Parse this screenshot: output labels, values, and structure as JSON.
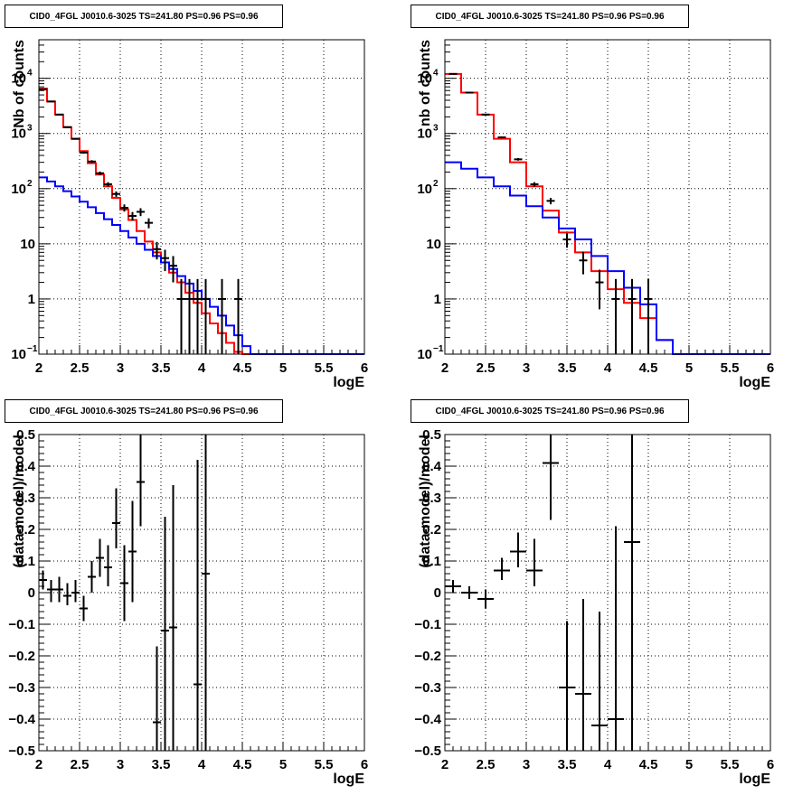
{
  "chart_data": [
    {
      "type": "line",
      "title": "CID0_4FGL J0010.6-3025 TS=241.80 PS=0.96 PS=0.96",
      "xlabel": "logE",
      "ylabel": "Nb of counts",
      "xlim": [
        2,
        6
      ],
      "ylim": [
        0.1,
        50000
      ],
      "yscale": "log",
      "grid": true,
      "xticks": [
        "2",
        "2.5",
        "3",
        "3.5",
        "4",
        "4.5",
        "5",
        "5.5",
        "6"
      ],
      "yticks": [
        {
          "value": 0.1,
          "label": "10",
          "exp": "−1"
        },
        {
          "value": 1,
          "label": "1",
          "exp": ""
        },
        {
          "value": 10,
          "label": "10",
          "exp": ""
        },
        {
          "value": 100,
          "label": "10",
          "exp": "2"
        },
        {
          "value": 1000,
          "label": "10",
          "exp": "3"
        },
        {
          "value": 10000,
          "label": "10",
          "exp": "4"
        }
      ],
      "bin_edges": [
        2.0,
        2.1,
        2.2,
        2.3,
        2.4,
        2.5,
        2.6,
        2.7,
        2.8,
        2.9,
        3.0,
        3.1,
        3.2,
        3.3,
        3.4,
        3.5,
        3.6,
        3.7,
        3.8,
        3.9,
        4.0,
        4.1,
        4.2,
        4.3,
        4.4,
        4.5,
        4.6,
        4.7,
        4.8,
        4.9,
        5.0,
        5.1,
        5.2,
        5.3,
        5.4,
        5.5,
        5.6,
        5.7,
        5.8,
        5.9,
        6.0
      ],
      "series": [
        {
          "color": "#ff0000",
          "style": "step",
          "values": [
            6500,
            3800,
            2200,
            1300,
            800,
            480,
            290,
            180,
            110,
            68,
            42,
            27,
            17,
            11,
            7,
            4.6,
            3.0,
            2.0,
            1.3,
            0.85,
            0.55,
            0.36,
            0.24,
            0.16,
            0.11,
            0.1,
            0.1,
            0.1,
            0.1,
            0.1,
            0.1,
            0.1,
            0.1,
            0.1,
            0.1,
            0.1,
            0.1,
            0.1,
            0.1,
            0.1
          ]
        },
        {
          "color": "#0000ff",
          "style": "step",
          "values": [
            160,
            135,
            110,
            90,
            72,
            58,
            46,
            36,
            28,
            22,
            17,
            13,
            10,
            7.8,
            6,
            4.6,
            3.5,
            2.6,
            1.9,
            1.4,
            1.0,
            0.72,
            0.5,
            0.33,
            0.22,
            0.14,
            0.1,
            0.1,
            0.1,
            0.1,
            0.1,
            0.1,
            0.1,
            0.1,
            0.1,
            0.1,
            0.1,
            0.1,
            0.1,
            0.1
          ]
        }
      ],
      "points": {
        "color": "#000000",
        "x": [
          2.05,
          2.15,
          2.25,
          2.35,
          2.45,
          2.55,
          2.65,
          2.75,
          2.85,
          2.95,
          3.05,
          3.15,
          3.25,
          3.35,
          3.45,
          3.55,
          3.65,
          3.75,
          3.85,
          3.95,
          4.05,
          4.25,
          4.45
        ],
        "y": [
          6300,
          3800,
          2200,
          1300,
          800,
          450,
          310,
          190,
          120,
          80,
          45,
          32,
          38,
          24,
          8,
          5.5,
          4,
          1,
          1,
          1,
          1,
          1,
          1
        ],
        "ylo": [
          6220,
          3740,
          2150,
          1265,
          772,
          429,
          293,
          176,
          109,
          71,
          38.3,
          26.3,
          31.8,
          19.1,
          5.2,
          3.2,
          2.0,
          0.1,
          0.1,
          0.1,
          0.1,
          0.1,
          0.1
        ],
        "yhi": [
          6380,
          3860,
          2250,
          1336,
          828,
          471,
          328,
          204,
          131,
          89,
          51.7,
          37.7,
          44.2,
          28.9,
          10.8,
          7.8,
          6.0,
          2.3,
          2.3,
          2.3,
          2.3,
          2.3,
          2.3
        ]
      }
    },
    {
      "type": "line",
      "title": "CID0_4FGL J0010.6-3025 TS=241.80 PS=0.96 PS=0.96",
      "xlabel": "logE",
      "ylabel": "nb of counts",
      "xlim": [
        2,
        6
      ],
      "ylim": [
        0.1,
        50000
      ],
      "yscale": "log",
      "grid": true,
      "xticks": [
        "2",
        "2.5",
        "3",
        "3.5",
        "4",
        "4.5",
        "5",
        "5.5",
        "6"
      ],
      "yticks": [
        {
          "value": 0.1,
          "label": "10",
          "exp": "−1"
        },
        {
          "value": 1,
          "label": "1",
          "exp": ""
        },
        {
          "value": 10,
          "label": "10",
          "exp": ""
        },
        {
          "value": 100,
          "label": "10",
          "exp": "2"
        },
        {
          "value": 1000,
          "label": "10",
          "exp": "3"
        },
        {
          "value": 10000,
          "label": "10",
          "exp": "4"
        }
      ],
      "bin_edges": [
        2.0,
        2.2,
        2.4,
        2.6,
        2.8,
        3.0,
        3.2,
        3.4,
        3.6,
        3.8,
        4.0,
        4.2,
        4.4,
        4.6,
        4.8,
        5.0,
        5.2,
        5.4,
        5.6,
        5.8,
        6.0
      ],
      "series": [
        {
          "color": "#ff0000",
          "style": "step",
          "values": [
            12000,
            5500,
            2200,
            800,
            300,
            110,
            40,
            16,
            7,
            3.2,
            1.5,
            0.85,
            0.45,
            0.18,
            0.1,
            0.1,
            0.1,
            0.1,
            0.1,
            0.1
          ]
        },
        {
          "color": "#0000ff",
          "style": "step",
          "values": [
            300,
            230,
            160,
            110,
            75,
            48,
            30,
            19,
            12,
            6,
            3.2,
            1.6,
            0.8,
            0.18,
            0.1,
            0.1,
            0.1,
            0.1,
            0.1,
            0.1
          ]
        }
      ],
      "points": {
        "color": "#000000",
        "x": [
          2.1,
          2.3,
          2.5,
          2.7,
          2.9,
          3.1,
          3.3,
          3.5,
          3.7,
          3.9,
          4.1,
          4.3,
          4.5
        ],
        "y": [
          12000,
          5500,
          2200,
          850,
          340,
          120,
          60,
          12,
          5,
          2,
          1,
          1,
          1
        ],
        "ylo": [
          11890,
          5426,
          2153,
          821,
          322,
          109,
          52,
          8.5,
          2.8,
          0.65,
          0.1,
          0.1,
          0.1
        ],
        "yhi": [
          12110,
          5574,
          2247,
          879,
          358,
          131,
          68,
          15.5,
          7.2,
          3.4,
          2.3,
          2.3,
          2.3
        ]
      }
    },
    {
      "type": "scatter",
      "title": "CID0_4FGL J0010.6-3025 TS=241.80 PS=0.96 PS=0.96",
      "xlabel": "logE",
      "ylabel": "(data-model)/model",
      "xlim": [
        2,
        6
      ],
      "ylim": [
        -0.5,
        0.5
      ],
      "grid": true,
      "xticks": [
        "2",
        "2.5",
        "3",
        "3.5",
        "4",
        "4.5",
        "5",
        "5.5",
        "6"
      ],
      "yticks": [
        "−0.5",
        "−0.4",
        "−0.3",
        "−0.2",
        "−0.1",
        "0",
        "0.1",
        "0.2",
        "0.3",
        "0.4",
        "0.5"
      ],
      "points": {
        "color": "#000000",
        "halfwidth": 0.05,
        "x": [
          2.05,
          2.15,
          2.25,
          2.35,
          2.45,
          2.55,
          2.65,
          2.75,
          2.85,
          2.95,
          3.05,
          3.15,
          3.25,
          3.45,
          3.55,
          3.65,
          3.95,
          4.05
        ],
        "y": [
          0.04,
          0.01,
          0.01,
          -0.01,
          0.0,
          -0.05,
          0.05,
          0.11,
          0.08,
          0.22,
          0.03,
          0.13,
          0.35,
          -0.41,
          -0.12,
          -0.11,
          -0.29,
          0.06
        ],
        "ylo": [
          0.01,
          -0.03,
          -0.03,
          -0.04,
          -0.03,
          -0.09,
          0.0,
          0.05,
          0.02,
          0.14,
          -0.09,
          -0.03,
          0.21,
          -0.5,
          -0.5,
          -0.5,
          -0.5,
          -0.5
        ],
        "yhi": [
          0.07,
          0.04,
          0.05,
          0.03,
          0.04,
          -0.01,
          0.1,
          0.17,
          0.15,
          0.33,
          0.15,
          0.29,
          0.5,
          -0.17,
          0.24,
          0.34,
          0.42,
          0.5
        ]
      }
    },
    {
      "type": "scatter",
      "title": "CID0_4FGL J0010.6-3025 TS=241.80 PS=0.96 PS=0.96",
      "xlabel": "logE",
      "ylabel": "(data-model)/model",
      "xlim": [
        2,
        6
      ],
      "ylim": [
        -0.5,
        0.5
      ],
      "grid": true,
      "xticks": [
        "2",
        "2.5",
        "3",
        "3.5",
        "4",
        "4.5",
        "5",
        "5.5",
        "6"
      ],
      "yticks": [
        "−0.5",
        "−0.4",
        "−0.3",
        "−0.2",
        "−0.1",
        "0",
        "0.1",
        "0.2",
        "0.3",
        "0.4",
        "0.5"
      ],
      "points": {
        "color": "#000000",
        "halfwidth": 0.1,
        "x": [
          2.1,
          2.3,
          2.5,
          2.7,
          2.9,
          3.1,
          3.3,
          3.5,
          3.7,
          3.9,
          4.1,
          4.3
        ],
        "y": [
          0.02,
          0.0,
          -0.02,
          0.07,
          0.13,
          0.07,
          0.41,
          -0.3,
          -0.32,
          -0.42,
          -0.4,
          0.16
        ],
        "ylo": [
          0.0,
          -0.02,
          -0.05,
          0.04,
          0.08,
          0.02,
          0.23,
          -0.5,
          -0.5,
          -0.5,
          -0.5,
          -0.5
        ],
        "yhi": [
          0.04,
          0.02,
          0.01,
          0.11,
          0.19,
          0.17,
          0.5,
          -0.09,
          -0.02,
          -0.06,
          0.21,
          0.5
        ]
      }
    }
  ]
}
